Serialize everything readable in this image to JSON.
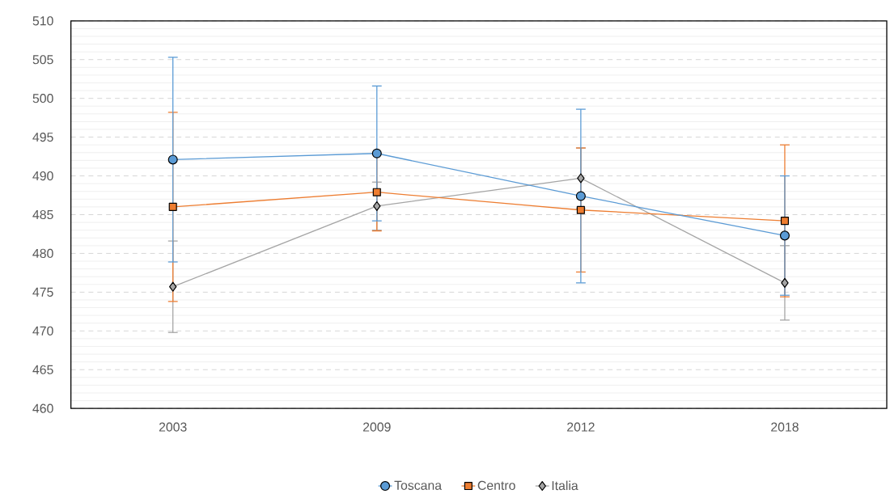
{
  "chart_data": {
    "type": "line",
    "categories": [
      "2003",
      "2009",
      "2012",
      "2018"
    ],
    "series": [
      {
        "name": "Toscana",
        "color": "#5b9bd5",
        "marker": "circle",
        "values": [
          492.1,
          492.9,
          487.4,
          482.3
        ],
        "errors": [
          13.2,
          8.7,
          11.2,
          7.7
        ]
      },
      {
        "name": "Centro",
        "color": "#ed7d31",
        "marker": "square",
        "values": [
          486.0,
          487.9,
          485.6,
          484.2
        ],
        "errors": [
          12.2,
          5.0,
          8.0,
          9.8
        ]
      },
      {
        "name": "Italia",
        "color": "#a5a5a5",
        "marker": "diamond",
        "values": [
          475.7,
          486.1,
          489.7,
          476.2
        ],
        "errors": [
          5.9,
          3.1,
          3.9,
          4.8
        ]
      }
    ],
    "ylim": [
      460,
      510
    ],
    "yticks": [
      460,
      465,
      470,
      475,
      480,
      485,
      490,
      495,
      500,
      505,
      510
    ],
    "grid": "y",
    "legend": "bottom",
    "line_style": "solid"
  }
}
